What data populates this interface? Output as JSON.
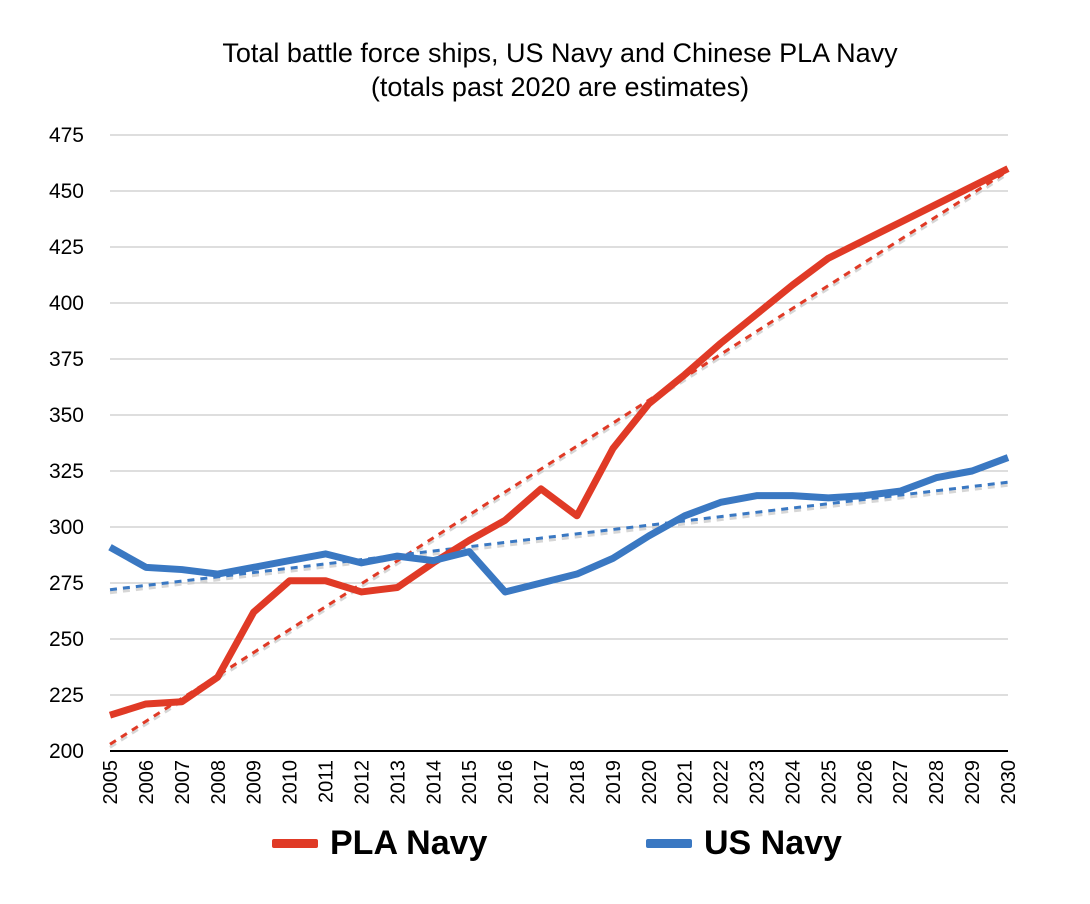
{
  "chart_data": {
    "type": "line",
    "title": "Total battle force ships, US Navy and Chinese PLA Navy",
    "subtitle": "(totals past 2020 are estimates)",
    "xlabel": "",
    "ylabel": "",
    "x": [
      "2005",
      "2006",
      "2007",
      "2008",
      "2009",
      "2010",
      "2011",
      "2012",
      "2013",
      "2014",
      "2015",
      "2016",
      "2017",
      "2018",
      "2019",
      "2020",
      "2021",
      "2022",
      "2023",
      "2024",
      "2025",
      "2026",
      "2027",
      "2028",
      "2029",
      "2030"
    ],
    "ylim": [
      200,
      475
    ],
    "yticks": [
      "200",
      "225",
      "250",
      "275",
      "300",
      "325",
      "350",
      "375",
      "400",
      "425",
      "450",
      "475"
    ],
    "grid": true,
    "legend_position": "bottom",
    "series": [
      {
        "name": "PLA Navy",
        "color": "#E03A26",
        "values": [
          216,
          221,
          222,
          233,
          262,
          276,
          276,
          271,
          273,
          284,
          294,
          303,
          317,
          305,
          335,
          355,
          368,
          382,
          395,
          408,
          420,
          428,
          436,
          444,
          452,
          460
        ],
        "trendline": {
          "start": 203,
          "end": 459,
          "style": "dotted"
        }
      },
      {
        "name": "US Navy",
        "color": "#3A78C2",
        "values": [
          291,
          282,
          281,
          279,
          282,
          285,
          288,
          284,
          287,
          285,
          289,
          271,
          275,
          279,
          286,
          296,
          305,
          311,
          314,
          314,
          313,
          314,
          316,
          322,
          325,
          331
        ],
        "trendline": {
          "start": 272,
          "end": 320,
          "style": "dotted"
        }
      }
    ]
  }
}
